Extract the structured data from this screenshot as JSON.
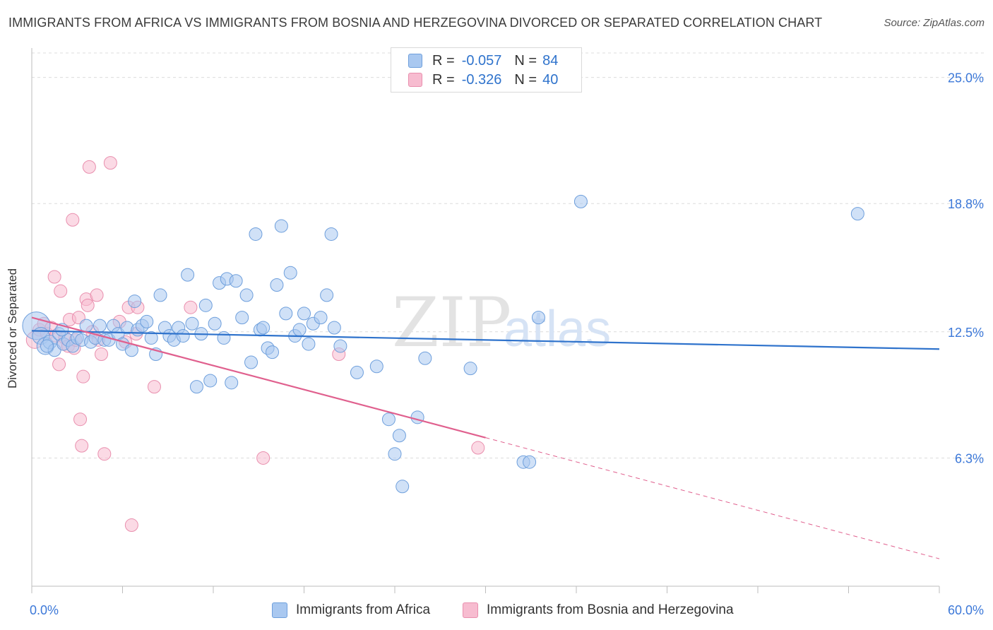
{
  "title": "IMMIGRANTS FROM AFRICA VS IMMIGRANTS FROM BOSNIA AND HERZEGOVINA DIVORCED OR SEPARATED CORRELATION CHART",
  "source": "Source: ZipAtlas.com",
  "watermark": {
    "zip": "ZIP",
    "atlas": "atlas"
  },
  "colors": {
    "africa_fill": "#a9c8f0",
    "africa_stroke": "#6e9fdc",
    "africa_line": "#2f73cc",
    "bosnia_fill": "#f7bcd0",
    "bosnia_stroke": "#e98fae",
    "bosnia_line": "#e0608e",
    "axis_text": "#3c78d8"
  },
  "legend": {
    "rows": [
      {
        "r_label": "R =",
        "r_value": "-0.057",
        "n_label": "N =",
        "n_value": "84"
      },
      {
        "r_label": "R =",
        "r_value": "-0.326",
        "n_label": "N =",
        "n_value": "40"
      }
    ]
  },
  "bottom_legend": {
    "africa": "Immigrants from Africa",
    "bosnia": "Immigrants from Bosnia and Herzegovina"
  },
  "chart_data": {
    "type": "scatter",
    "title": "IMMIGRANTS FROM AFRICA VS IMMIGRANTS FROM BOSNIA AND HERZEGOVINA DIVORCED OR SEPARATED CORRELATION CHART",
    "xlabel": "",
    "ylabel": "Divorced or Separated",
    "xlim": [
      0,
      60
    ],
    "ylim": [
      0,
      26.2
    ],
    "x_tick_labels": [
      "0.0%",
      "60.0%"
    ],
    "y_ticks": [
      6.3,
      12.5,
      18.8,
      25.0
    ],
    "y_tick_labels": [
      "6.3%",
      "12.5%",
      "18.8%",
      "25.0%"
    ],
    "grid": "horizontal dashed",
    "legend_position": "top-center",
    "series": [
      {
        "name": "Immigrants from Africa",
        "trend": {
          "x": [
            0,
            60
          ],
          "y": [
            12.55,
            11.65
          ]
        },
        "points": [
          [
            0.3,
            12.8,
            26
          ],
          [
            0.6,
            12.3,
            16
          ],
          [
            0.9,
            11.8,
            16
          ],
          [
            1.2,
            12.0,
            13
          ],
          [
            1.5,
            11.6,
            12
          ],
          [
            1.8,
            12.4,
            12
          ],
          [
            2.1,
            11.9,
            12
          ],
          [
            2.4,
            12.1,
            12
          ],
          [
            2.7,
            11.8,
            12
          ],
          [
            3.0,
            12.2,
            12
          ],
          [
            3.3,
            12.1,
            12
          ],
          [
            3.6,
            12.8,
            12
          ],
          [
            3.9,
            12.0,
            12
          ],
          [
            4.2,
            12.2,
            12
          ],
          [
            4.5,
            12.8,
            12
          ],
          [
            4.8,
            12.1,
            12
          ],
          [
            5.1,
            12.1,
            12
          ],
          [
            5.4,
            12.8,
            12
          ],
          [
            5.7,
            12.4,
            12
          ],
          [
            6.0,
            11.9,
            12
          ],
          [
            6.3,
            12.7,
            12
          ],
          [
            6.6,
            11.6,
            12
          ],
          [
            6.8,
            14.0,
            12
          ],
          [
            7.0,
            12.6,
            12
          ],
          [
            7.3,
            12.8,
            12
          ],
          [
            7.6,
            13.0,
            12
          ],
          [
            7.9,
            12.2,
            12
          ],
          [
            8.2,
            11.4,
            12
          ],
          [
            8.5,
            14.3,
            12
          ],
          [
            8.8,
            12.7,
            12
          ],
          [
            9.1,
            12.3,
            12
          ],
          [
            9.4,
            12.1,
            12
          ],
          [
            9.7,
            12.7,
            12
          ],
          [
            10.0,
            12.3,
            12
          ],
          [
            10.3,
            15.3,
            12
          ],
          [
            10.6,
            12.9,
            12
          ],
          [
            10.9,
            9.8,
            12
          ],
          [
            11.2,
            12.4,
            12
          ],
          [
            11.5,
            13.8,
            12
          ],
          [
            11.8,
            10.1,
            12
          ],
          [
            12.1,
            12.9,
            12
          ],
          [
            12.4,
            14.9,
            12
          ],
          [
            12.7,
            12.2,
            12
          ],
          [
            12.9,
            15.1,
            12
          ],
          [
            13.2,
            10.0,
            12
          ],
          [
            13.5,
            15.0,
            12
          ],
          [
            13.9,
            13.2,
            12
          ],
          [
            14.2,
            14.3,
            12
          ],
          [
            14.5,
            11.0,
            12
          ],
          [
            14.8,
            17.3,
            12
          ],
          [
            15.1,
            12.6,
            12
          ],
          [
            15.3,
            12.7,
            12
          ],
          [
            15.6,
            11.7,
            12
          ],
          [
            15.9,
            11.5,
            12
          ],
          [
            16.2,
            14.8,
            12
          ],
          [
            16.5,
            17.7,
            12
          ],
          [
            16.8,
            13.4,
            12
          ],
          [
            17.1,
            15.4,
            12
          ],
          [
            17.4,
            12.3,
            12
          ],
          [
            17.7,
            12.6,
            12
          ],
          [
            18.0,
            13.4,
            12
          ],
          [
            18.3,
            11.9,
            12
          ],
          [
            18.6,
            12.9,
            12
          ],
          [
            19.1,
            13.2,
            12
          ],
          [
            19.5,
            14.3,
            12
          ],
          [
            19.8,
            17.3,
            12
          ],
          [
            20.0,
            12.7,
            12
          ],
          [
            20.4,
            11.8,
            12
          ],
          [
            21.5,
            10.5,
            12
          ],
          [
            22.8,
            10.8,
            12
          ],
          [
            23.6,
            8.2,
            12
          ],
          [
            24.0,
            6.5,
            12
          ],
          [
            24.3,
            7.4,
            12
          ],
          [
            24.5,
            4.9,
            12
          ],
          [
            25.5,
            8.3,
            12
          ],
          [
            26.0,
            11.2,
            12
          ],
          [
            29.0,
            10.7,
            12
          ],
          [
            32.5,
            6.1,
            12
          ],
          [
            32.9,
            6.1,
            12
          ],
          [
            33.5,
            13.2,
            12
          ],
          [
            36.3,
            18.9,
            12
          ],
          [
            54.6,
            18.3,
            12
          ],
          [
            1.0,
            11.8,
            12
          ],
          [
            2.0,
            12.6,
            12
          ]
        ]
      },
      {
        "name": "Immigrants from Bosnia and Herzegovina",
        "trend": {
          "x": [
            0,
            30
          ],
          "y": [
            13.2,
            7.3
          ]
        },
        "trend_extension": {
          "x": [
            30,
            60
          ],
          "y": [
            7.3,
            1.35
          ]
        },
        "points": [
          [
            0.2,
            12.1,
            16
          ],
          [
            0.5,
            12.6,
            12
          ],
          [
            0.8,
            12.9,
            12
          ],
          [
            1.0,
            12.4,
            12
          ],
          [
            1.3,
            12.7,
            12
          ],
          [
            1.5,
            15.2,
            12
          ],
          [
            1.6,
            12.3,
            12
          ],
          [
            1.8,
            10.9,
            12
          ],
          [
            1.9,
            14.5,
            12
          ],
          [
            2.1,
            11.9,
            12
          ],
          [
            2.2,
            12.2,
            12
          ],
          [
            2.4,
            11.8,
            12
          ],
          [
            2.5,
            13.1,
            12
          ],
          [
            2.7,
            18.0,
            12
          ],
          [
            2.8,
            11.7,
            12
          ],
          [
            2.9,
            12.1,
            12
          ],
          [
            3.1,
            13.2,
            12
          ],
          [
            3.2,
            8.2,
            12
          ],
          [
            3.3,
            6.9,
            12
          ],
          [
            3.4,
            10.3,
            12
          ],
          [
            3.6,
            14.1,
            12
          ],
          [
            3.7,
            13.8,
            12
          ],
          [
            3.8,
            20.6,
            12
          ],
          [
            4.0,
            12.5,
            12
          ],
          [
            4.3,
            14.3,
            12
          ],
          [
            4.4,
            12.1,
            12
          ],
          [
            4.6,
            11.4,
            12
          ],
          [
            4.8,
            6.5,
            12
          ],
          [
            5.2,
            20.8,
            12
          ],
          [
            5.8,
            13.0,
            12
          ],
          [
            6.2,
            12.0,
            12
          ],
          [
            6.4,
            13.7,
            12
          ],
          [
            6.6,
            3.0,
            12
          ],
          [
            6.9,
            12.4,
            12
          ],
          [
            7.0,
            13.7,
            12
          ],
          [
            8.1,
            9.8,
            12
          ],
          [
            10.5,
            13.7,
            12
          ],
          [
            15.3,
            6.3,
            12
          ],
          [
            20.3,
            11.4,
            12
          ],
          [
            29.5,
            6.8,
            12
          ]
        ]
      }
    ]
  }
}
